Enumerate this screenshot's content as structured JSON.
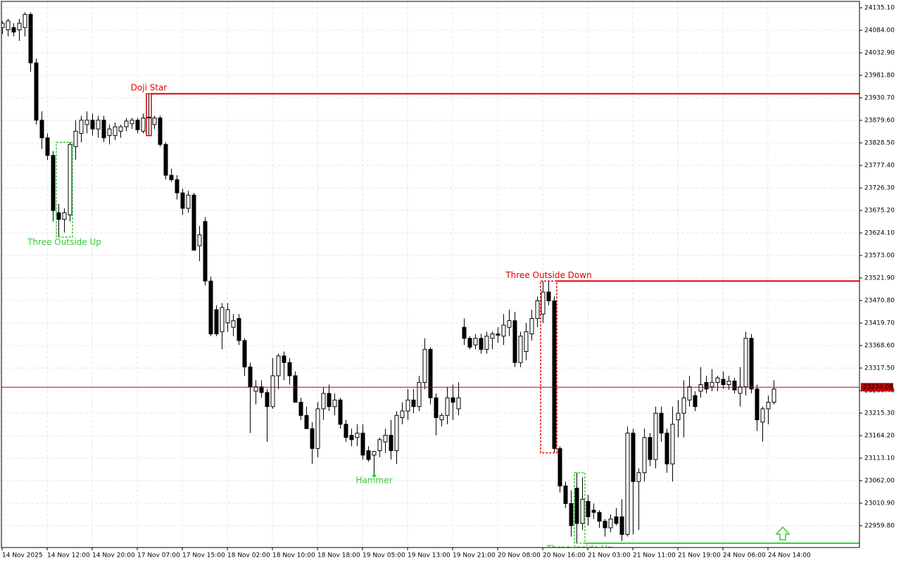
{
  "chart_data": {
    "type": "candlestick",
    "x": [
      "14 Nov 2025",
      null,
      null,
      null,
      null,
      null,
      null,
      null,
      "14 Nov 12:00",
      null,
      null,
      null,
      null,
      null,
      null,
      null,
      "14 Nov 20:00",
      null,
      null,
      null,
      null,
      null,
      null,
      null,
      "17 Nov 07:00",
      null,
      null,
      null,
      null,
      null,
      null,
      null,
      "17 Nov 15:00",
      null,
      null,
      null,
      null,
      null,
      null,
      null,
      "18 Nov 02:00",
      null,
      null,
      null,
      null,
      null,
      null,
      null,
      "18 Nov 10:00",
      null,
      null,
      null,
      null,
      null,
      null,
      null,
      "18 Nov 18:00",
      null,
      null,
      null,
      null,
      null,
      null,
      null,
      "19 Nov 05:00",
      null,
      null,
      null,
      null,
      null,
      null,
      null,
      "19 Nov 13:00",
      null,
      null,
      null,
      null,
      null,
      null,
      null,
      "19 Nov 21:00",
      null,
      null,
      null,
      null,
      null,
      null,
      null,
      "20 Nov 08:00",
      null,
      null,
      null,
      null,
      null,
      null,
      null,
      "20 Nov 16:00",
      null,
      null,
      null,
      null,
      null,
      null,
      null,
      "21 Nov 03:00",
      null,
      null,
      null,
      null,
      null,
      null,
      null,
      "21 Nov 11:00",
      null,
      null,
      null,
      null,
      null,
      null,
      null,
      "21 Nov 19:00",
      null,
      null,
      null,
      null,
      null,
      null,
      null,
      "24 Nov 06:00",
      null,
      null,
      null,
      null,
      null,
      null,
      null,
      "24 Nov 14:00",
      null
    ],
    "open": [
      24090,
      24085,
      24090,
      24085,
      24090,
      24120,
      24010,
      23880,
      23840,
      23800,
      23670,
      23655,
      23665,
      23820,
      23850,
      23870,
      23880,
      23860,
      23880,
      23845,
      23845,
      23855,
      23865,
      23872,
      23880,
      23855,
      23885,
      23870,
      23885,
      23825,
      23755,
      23745,
      23715,
      23680,
      23710,
      23595,
      23650,
      23515,
      23450,
      23400,
      23420,
      23410,
      23430,
      23380,
      23320,
      23265,
      23275,
      23262,
      23230,
      23300,
      23345,
      23330,
      23300,
      23240,
      23210,
      23180,
      23135,
      23225,
      23260,
      23230,
      23245,
      23190,
      23165,
      23160,
      23170,
      23130,
      23120,
      23130,
      23150,
      23165,
      23130,
      23205,
      23220,
      23245,
      23230,
      23285,
      23360,
      23250,
      23200,
      23210,
      23250,
      23225,
      23410,
      23385,
      23370,
      23385,
      23360,
      23385,
      23395,
      23390,
      23410,
      23425,
      23330,
      23355,
      23395,
      23430,
      23440,
      23490,
      23470,
      23135,
      23050,
      23010,
      23045,
      22965,
      23015,
      22995,
      22990,
      22970,
      22955,
      22980,
      22980,
      22940,
      23170,
      23060,
      23080,
      23160,
      23110,
      23215,
      23170,
      23100,
      23200,
      23215,
      23245,
      23255,
      23265,
      23285,
      23275,
      23285,
      23292,
      23280,
      23288,
      23260,
      23275,
      23385,
      23270,
      23195,
      23225,
      23240
    ],
    "high": [
      24105,
      24110,
      24100,
      24110,
      24125,
      24125,
      24020,
      23900,
      23850,
      23810,
      23690,
      23680,
      23830,
      23880,
      23890,
      23900,
      23895,
      23890,
      23890,
      23870,
      23875,
      23870,
      23885,
      23885,
      23885,
      23895,
      23940,
      23890,
      23890,
      23830,
      23770,
      23755,
      23725,
      23720,
      23715,
      23640,
      23660,
      23525,
      23460,
      23465,
      23465,
      23440,
      23440,
      23385,
      23330,
      23290,
      23290,
      23270,
      23340,
      23350,
      23355,
      23340,
      23310,
      23250,
      23230,
      23195,
      23240,
      23275,
      23280,
      23260,
      23250,
      23200,
      23180,
      23190,
      23190,
      23140,
      23130,
      23160,
      23180,
      23200,
      23220,
      23240,
      23270,
      23270,
      23300,
      23385,
      23365,
      23260,
      23215,
      23275,
      23280,
      23285,
      23430,
      23390,
      23395,
      23395,
      23400,
      23400,
      23410,
      23440,
      23450,
      23445,
      23400,
      23420,
      23450,
      23480,
      23515,
      23515,
      23480,
      23140,
      23060,
      23040,
      23080,
      23070,
      23030,
      23010,
      22995,
      22975,
      22985,
      23000,
      23020,
      23185,
      23180,
      23090,
      23180,
      23170,
      23230,
      23230,
      23180,
      23230,
      23245,
      23290,
      23300,
      23265,
      23320,
      23300,
      23315,
      23300,
      23310,
      23300,
      23295,
      23320,
      23400,
      23395,
      23280,
      23230,
      23255,
      23290
    ],
    "low": [
      24075,
      24070,
      24070,
      24060,
      24070,
      23990,
      23870,
      23815,
      23790,
      23650,
      23615,
      23625,
      23650,
      23790,
      23830,
      23850,
      23845,
      23840,
      23830,
      23825,
      23835,
      23840,
      23855,
      23860,
      23850,
      23850,
      23845,
      23860,
      23820,
      23745,
      23740,
      23700,
      23665,
      23670,
      23585,
      23560,
      23505,
      23390,
      23390,
      23360,
      23400,
      23390,
      23370,
      23300,
      23170,
      23235,
      23250,
      23150,
      23225,
      23270,
      23290,
      23280,
      23240,
      23200,
      23180,
      23100,
      23115,
      23200,
      23220,
      23210,
      23180,
      23150,
      23140,
      23140,
      23110,
      23105,
      23075,
      23115,
      23125,
      23110,
      23100,
      23190,
      23200,
      23215,
      23220,
      23270,
      23235,
      23165,
      23185,
      23190,
      23200,
      23210,
      23370,
      23360,
      23360,
      23350,
      23350,
      23360,
      23375,
      23370,
      23390,
      23320,
      23320,
      23335,
      23380,
      23410,
      23420,
      23460,
      23125,
      23035,
      23000,
      22935,
      22920,
      22950,
      22960,
      22975,
      22955,
      22935,
      22945,
      22960,
      22925,
      22935,
      22940,
      22950,
      23060,
      23095,
      23090,
      23150,
      23080,
      23060,
      23160,
      23160,
      23230,
      23220,
      23250,
      23260,
      23265,
      23265,
      23270,
      23268,
      23260,
      23230,
      23255,
      23260,
      23175,
      23150,
      23190,
      23235
    ],
    "close": [
      24100,
      24105,
      24080,
      24100,
      24120,
      24010,
      23880,
      23840,
      23800,
      23675,
      23655,
      23670,
      23825,
      23855,
      23880,
      23880,
      23860,
      23880,
      23840,
      23860,
      23865,
      23865,
      23878,
      23880,
      23858,
      23885,
      23887,
      23885,
      23825,
      23755,
      23745,
      23715,
      23680,
      23710,
      23585,
      23620,
      23515,
      23395,
      23395,
      23455,
      23450,
      23425,
      23380,
      23320,
      23275,
      23275,
      23262,
      23230,
      23300,
      23345,
      23330,
      23300,
      23240,
      23210,
      23180,
      23135,
      23225,
      23260,
      23230,
      23245,
      23190,
      23160,
      23155,
      23170,
      23120,
      23110,
      23128,
      23155,
      23165,
      23130,
      23210,
      23220,
      23245,
      23230,
      23285,
      23360,
      23250,
      23205,
      23210,
      23250,
      23240,
      23250,
      23385,
      23365,
      23385,
      23360,
      23390,
      23395,
      23392,
      23415,
      23425,
      23330,
      23390,
      23400,
      23430,
      23470,
      23490,
      23470,
      23135,
      23050,
      23010,
      22960,
      22965,
      23020,
      22980,
      22990,
      22970,
      22955,
      22975,
      22965,
      22940,
      23170,
      23060,
      23080,
      23160,
      23110,
      23215,
      23170,
      23100,
      23190,
      23215,
      23250,
      23275,
      23230,
      23280,
      23270,
      23285,
      23295,
      23280,
      23288,
      23268,
      23275,
      23385,
      23270,
      23200,
      23225,
      23240,
      23270
    ],
    "ylim": [
      22910.3,
      24149.5
    ],
    "yticks": [
      {
        "value": 22959.8,
        "label": "22959.80"
      },
      {
        "value": 23010.9,
        "label": "23010.90"
      },
      {
        "value": 23062,
        "label": "23062.00"
      },
      {
        "value": 23113.1,
        "label": "23113.10"
      },
      {
        "value": 23164.2,
        "label": "23164.20"
      },
      {
        "value": 23215.3,
        "label": "23215.30"
      },
      {
        "value": 23266.4,
        "label": "23266.40"
      },
      {
        "value": 23317.5,
        "label": "23317.50"
      },
      {
        "value": 23368.6,
        "label": "23368.60"
      },
      {
        "value": 23419.7,
        "label": "23419.70"
      },
      {
        "value": 23470.8,
        "label": "23470.80"
      },
      {
        "value": 23521.9,
        "label": "23521.90"
      },
      {
        "value": 23573,
        "label": "23573.00"
      },
      {
        "value": 23624.1,
        "label": "23624.10"
      },
      {
        "value": 23675.2,
        "label": "23675.20"
      },
      {
        "value": 23726.3,
        "label": "23726.30"
      },
      {
        "value": 23777.4,
        "label": "23777.40"
      },
      {
        "value": 23828.5,
        "label": "23828.50"
      },
      {
        "value": 23879.6,
        "label": "23879.60"
      },
      {
        "value": 23930.7,
        "label": "23930.70"
      },
      {
        "value": 23981.8,
        "label": "23981.80"
      },
      {
        "value": 24032.9,
        "label": "24032.90"
      },
      {
        "value": 24084,
        "label": "24084.00"
      },
      {
        "value": 24135.1,
        "label": "24135.10"
      }
    ],
    "grid": true,
    "current_price": 23274.05,
    "current_price_color": "#c00000",
    "patterns": [
      {
        "name": "Three Outside Up",
        "color": "#32cd32",
        "start": 10,
        "end": 12,
        "style": "box",
        "dashed": true,
        "label_pos": "below"
      },
      {
        "name": "Doji Star",
        "color": "#e00000",
        "start": 26,
        "end": 26,
        "style": "box",
        "dashed": false,
        "label_pos": "above",
        "level": "high"
      },
      {
        "name": "Hammer",
        "color": "#32cd32",
        "start": 66,
        "end": 66,
        "style": "marker",
        "label_pos": "below"
      },
      {
        "name": "Three Outside Down",
        "color": "#e00000",
        "start": 96,
        "end": 98,
        "style": "box",
        "dashed": true,
        "label_pos": "above",
        "level": "high"
      },
      {
        "name": "Three Inside Up",
        "color": "#32cd32",
        "start": 102,
        "end": 103,
        "style": "box",
        "dashed": true,
        "label_pos": "below",
        "level": "low"
      }
    ]
  }
}
